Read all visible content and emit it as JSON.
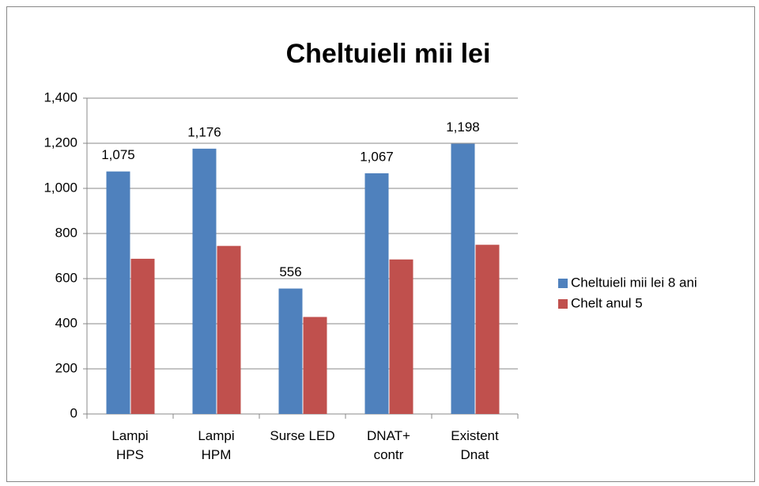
{
  "chart_data": {
    "type": "bar",
    "title": "Cheltuieli mii lei",
    "categories": [
      "Lampi\nHPS",
      "Lampi\nHPM",
      "Surse LED",
      "DNAT+\ncontr",
      "Existent\nDnat"
    ],
    "series": [
      {
        "name": "Cheltuieli mii lei 8 ani",
        "color": "#4f81bd",
        "values": [
          1075,
          1176,
          556,
          1067,
          1198
        ],
        "value_labels": [
          "1,075",
          "1,176",
          "556",
          "1,067",
          "1,198"
        ]
      },
      {
        "name": "Chelt anul 5",
        "color": "#c0504d",
        "values": [
          688,
          745,
          430,
          685,
          750
        ]
      }
    ],
    "ylim": [
      0,
      1400
    ],
    "yticks": [
      0,
      200,
      400,
      600,
      800,
      {
        "value": 1000,
        "label": "1,000"
      },
      {
        "value": 1200,
        "label": "1,200"
      },
      {
        "value": 1400,
        "label": "1,400"
      }
    ],
    "grid": true,
    "legend": "right"
  }
}
